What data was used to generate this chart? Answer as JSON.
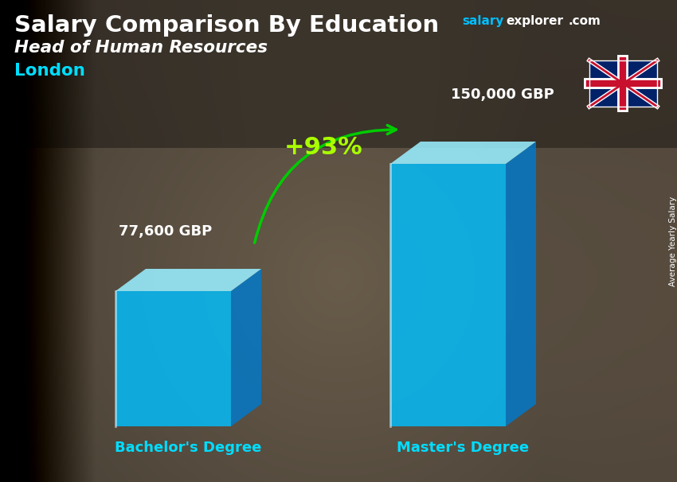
{
  "title_part1": "Salary Comparison By Education",
  "subtitle": "Head of Human Resources",
  "location": "London",
  "ylabel": "Average Yearly Salary",
  "categories": [
    "Bachelor's Degree",
    "Master's Degree"
  ],
  "values": [
    77600,
    150000
  ],
  "labels": [
    "77,600 GBP",
    "150,000 GBP"
  ],
  "pct_change": "+93%",
  "bar_face_color": "#00BFFF",
  "bar_right_color": "#007ACC",
  "bar_top_color": "#99EEFF",
  "title_color": "#FFFFFF",
  "subtitle_color": "#FFFFFF",
  "location_color": "#00DDFF",
  "label_color": "#FFFFFF",
  "category_color": "#00DDFF",
  "pct_color": "#AAFF00",
  "arrow_color": "#00CC00",
  "salary_color": "#00BFFF",
  "watermark_salary": "salary",
  "watermark_explorer": "explorer",
  "watermark_com": ".com",
  "bg_dark": "#1a1a2e",
  "bg_mid": "#2d2d3a"
}
